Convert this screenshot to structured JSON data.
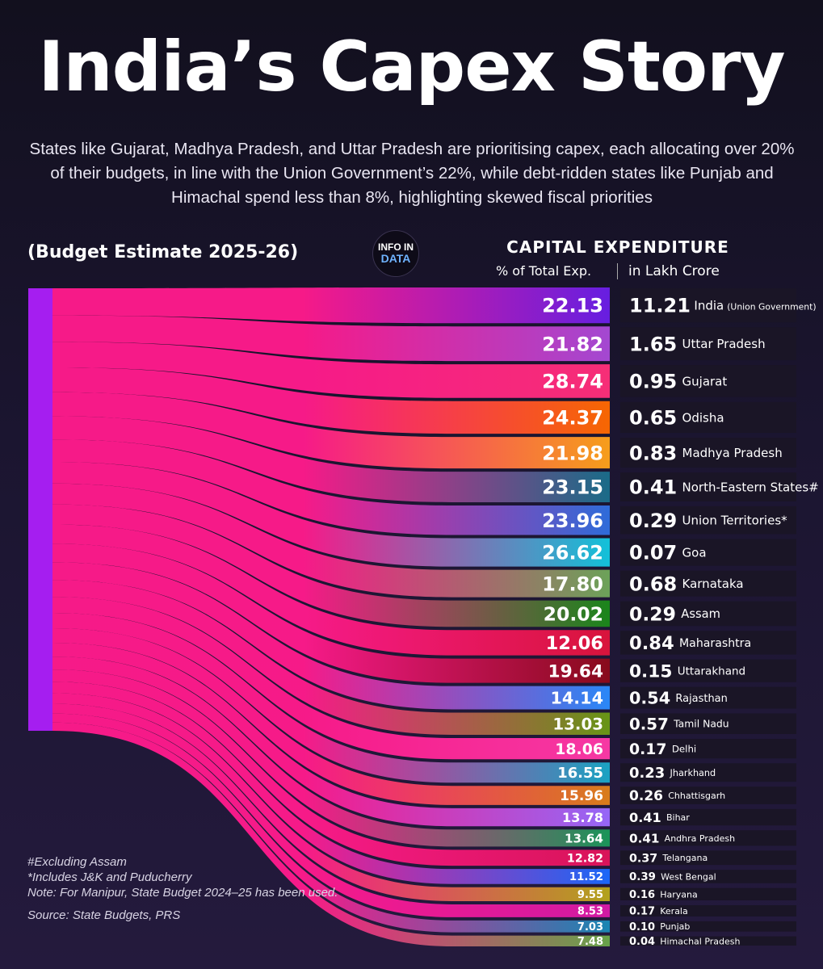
{
  "title": "India’s Capex Story",
  "subtitle": "States like Gujarat, Madhya Pradesh, and Uttar Pradesh are prioritising capex, each allocating over 20% of their budgets, in line with the Union Government’s 22%, while debt-ridden states like Punjab and Himachal spend less than 8%, highlighting skewed fiscal priorities",
  "period_label": "(Budget Estimate 2025-26)",
  "logo": {
    "line1": "INFO IN",
    "line2": "DATA"
  },
  "header": {
    "main": "CAPITAL EXPENDITURE",
    "pct_label": "% of Total Exp.",
    "abs_label": "in Lakh Crore"
  },
  "notes": {
    "n1": "#Excluding Assam",
    "n2": "*Includes J&K and Puducherry",
    "n3": "Note: For Manipur, State Budget 2024–25 has been used.",
    "source": "Source: State Budgets, PRS"
  },
  "chart_data": {
    "type": "sankey-bar",
    "title": "India’s Capex Story",
    "columns": [
      "% of Total Exp.",
      "in Lakh Crore"
    ],
    "rows": [
      {
        "name": "India",
        "note": "(Union Government)",
        "pct": "22.13",
        "amount": "11.21",
        "color": "#6a1fe8"
      },
      {
        "name": "Uttar Pradesh",
        "note": "",
        "pct": "21.82",
        "amount": "1.65",
        "color": "#a94ad8"
      },
      {
        "name": "Gujarat",
        "note": "",
        "pct": "28.74",
        "amount": "0.95",
        "color": "#ff2f7a"
      },
      {
        "name": "Odisha",
        "note": "",
        "pct": "24.37",
        "amount": "0.65",
        "color": "#ff6a00"
      },
      {
        "name": "Madhya Pradesh",
        "note": "",
        "pct": "21.98",
        "amount": "0.83",
        "color": "#ffa31a"
      },
      {
        "name": "North-Eastern States#",
        "note": "",
        "pct": "23.15",
        "amount": "0.41",
        "color": "#1a6f8c"
      },
      {
        "name": "Union Territories*",
        "note": "",
        "pct": "23.96",
        "amount": "0.29",
        "color": "#2f6fe0"
      },
      {
        "name": "Goa",
        "note": "",
        "pct": "26.62",
        "amount": "0.07",
        "color": "#12c8e0"
      },
      {
        "name": "Karnataka",
        "note": "",
        "pct": "17.80",
        "amount": "0.68",
        "color": "#6fa85a"
      },
      {
        "name": "Assam",
        "note": "",
        "pct": "20.02",
        "amount": "0.29",
        "color": "#1a8a1a"
      },
      {
        "name": "Maharashtra",
        "note": "",
        "pct": "12.06",
        "amount": "0.84",
        "color": "#e0143c"
      },
      {
        "name": "Uttarakhand",
        "note": "",
        "pct": "19.64",
        "amount": "0.15",
        "color": "#8c0a1a"
      },
      {
        "name": "Rajasthan",
        "note": "",
        "pct": "14.14",
        "amount": "0.54",
        "color": "#2a8cff"
      },
      {
        "name": "Tamil Nadu",
        "note": "",
        "pct": "13.03",
        "amount": "0.57",
        "color": "#6a9a14"
      },
      {
        "name": "Delhi",
        "note": "",
        "pct": "18.06",
        "amount": "0.17",
        "color": "#ff3aa8"
      },
      {
        "name": "Jharkhand",
        "note": "",
        "pct": "16.55",
        "amount": "0.23",
        "color": "#1aa8c8"
      },
      {
        "name": "Chhattisgarh",
        "note": "",
        "pct": "15.96",
        "amount": "0.26",
        "color": "#e0801a"
      },
      {
        "name": "Bihar",
        "note": "",
        "pct": "13.78",
        "amount": "0.41",
        "color": "#9a6aff"
      },
      {
        "name": "Andhra Pradesh",
        "note": "",
        "pct": "13.64",
        "amount": "0.41",
        "color": "#1a9a5a"
      },
      {
        "name": "Telangana",
        "note": "",
        "pct": "12.82",
        "amount": "0.37",
        "color": "#e0145a"
      },
      {
        "name": "West Bengal",
        "note": "",
        "pct": "11.52",
        "amount": "0.39",
        "color": "#1a6aff"
      },
      {
        "name": "Haryana",
        "note": "",
        "pct": "9.55",
        "amount": "0.16",
        "color": "#b8a81a"
      },
      {
        "name": "Kerala",
        "note": "",
        "pct": "8.53",
        "amount": "0.17",
        "color": "#d81aa8"
      },
      {
        "name": "Punjab",
        "note": "",
        "pct": "7.03",
        "amount": "0.10",
        "color": "#1a8ab8"
      },
      {
        "name": "Himachal Pradesh",
        "note": "",
        "pct": "7.48",
        "amount": "0.04",
        "color": "#6aa84a"
      }
    ]
  }
}
